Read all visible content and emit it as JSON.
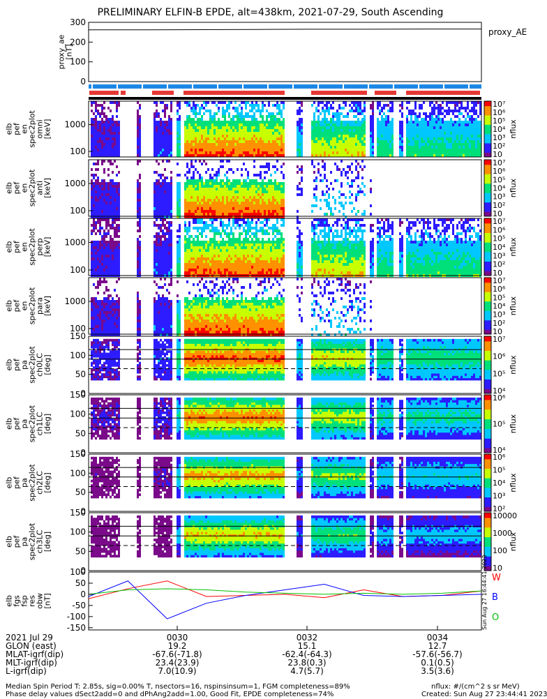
{
  "title": "PRELIMINARY ELFIN-B EPDE, alt=438km, 2021-07-29, South Ascending",
  "colors": {
    "bar_blue": "#1e88e5",
    "bar_red": "#e53935",
    "wave_w": "#ff0000",
    "wave_b": "#0000ff",
    "wave_g": "#00c000",
    "colorbar": [
      "#ffffff",
      "#7a0a8a",
      "#2c1cff",
      "#00c8ff",
      "#00e07a",
      "#c8ff00",
      "#ff9000",
      "#ff0000"
    ]
  },
  "chart_data": [
    {
      "type": "line",
      "name": "proxy_ae",
      "ylabel": "proxy_ae\n[nT]",
      "ylim": [
        0,
        300
      ],
      "yticks": [
        "0",
        "100",
        "200",
        "300"
      ],
      "legend": "proxy_AE",
      "series": [
        {
          "values": [
            262,
            262,
            263,
            264,
            265,
            265,
            266,
            266
          ]
        }
      ]
    },
    {
      "type": "heatmap",
      "ylabel": "elb\npef\nen\nspec2plot\nomni\n[keV]",
      "yscale": "log",
      "yticks": [
        "100",
        "1000"
      ],
      "colorbar": {
        "label": "nflux",
        "ticks": [
          "10",
          "10²",
          "10³",
          "10⁴",
          "10⁵",
          "10⁶",
          "10⁷"
        ]
      }
    },
    {
      "type": "heatmap",
      "ylabel": "elb\npef\nen\nspec2plot\nanti\n[keV]",
      "yscale": "log",
      "yticks": [
        "100",
        "1000"
      ],
      "colorbar": {
        "label": "nflux",
        "ticks": [
          "10",
          "10²",
          "10³",
          "10⁴",
          "10⁵",
          "10⁶",
          "10⁷"
        ]
      }
    },
    {
      "type": "heatmap",
      "ylabel": "elb\npef\nen\nspec2plot\nperp\n[keV]",
      "yscale": "log",
      "yticks": [
        "100",
        "1000"
      ],
      "colorbar": {
        "label": "nflux",
        "ticks": [
          "10",
          "10²",
          "10³",
          "10⁴",
          "10⁵",
          "10⁶",
          "10⁷"
        ]
      }
    },
    {
      "type": "heatmap",
      "ylabel": "elb\npef\nen\nspec2plot\npara\n[keV]",
      "yscale": "log",
      "yticks": [
        "100",
        "1000"
      ],
      "colorbar": {
        "label": "nflux",
        "ticks": [
          "10",
          "10²",
          "10³",
          "10⁴",
          "10⁵",
          "10⁶",
          "10⁷"
        ]
      }
    },
    {
      "type": "heatmap",
      "ylabel": "elb\npef\npa\nspec2plot\nch0LC\n[deg]",
      "ylim": [
        0,
        150
      ],
      "yticks": [
        "0",
        "50",
        "100",
        "150"
      ],
      "colorbar": {
        "label": "nflux",
        "ticks": [
          "10⁴",
          "10⁵",
          "10⁶",
          "10⁷"
        ]
      }
    },
    {
      "type": "heatmap",
      "ylabel": "elb\npef\npa\nspec2plot\nch1LC\n[deg]",
      "ylim": [
        0,
        150
      ],
      "yticks": [
        "0",
        "50",
        "100",
        "150"
      ],
      "colorbar": {
        "label": "nflux",
        "ticks": [
          "10⁴",
          "10⁵",
          "10⁶"
        ]
      }
    },
    {
      "type": "heatmap",
      "ylabel": "elb\npef\npa\nspec2plot\nch2LC\n[deg]",
      "ylim": [
        0,
        150
      ],
      "yticks": [
        "0",
        "50",
        "100",
        "150"
      ],
      "colorbar": {
        "label": "nflux",
        "ticks": [
          "10²",
          "10³",
          "10⁴",
          "10⁵",
          "10⁶"
        ]
      }
    },
    {
      "type": "heatmap",
      "ylabel": "elb\npef\npa\nspec2plot\nch3LC\n[deg]",
      "ylim": [
        0,
        150
      ],
      "yticks": [
        "0",
        "50",
        "100",
        "150"
      ],
      "colorbar": {
        "label": "nflux",
        "ticks": [
          "10",
          "100",
          "1000",
          "10000"
        ]
      }
    },
    {
      "type": "line",
      "ylabel": "elb\nfgs\nfsp\nres\nobw\n[nT]",
      "ylim": [
        -160,
        100
      ],
      "yticks": [
        "-150",
        "-100",
        "-50",
        "0",
        "50",
        "100"
      ],
      "x": [
        0,
        10,
        20,
        30,
        40,
        50,
        60,
        70,
        80,
        90,
        100
      ],
      "series": [
        {
          "name": "W",
          "values": [
            -20,
            25,
            60,
            -10,
            -5,
            0,
            -15,
            20,
            -10,
            -5,
            15
          ]
        },
        {
          "name": "B",
          "values": [
            -10,
            60,
            -110,
            -40,
            -5,
            20,
            45,
            -5,
            -10,
            -5,
            0
          ]
        },
        {
          "name": "O",
          "values": [
            0,
            20,
            25,
            20,
            10,
            5,
            0,
            5,
            0,
            5,
            15
          ]
        }
      ]
    }
  ],
  "xaxis": {
    "ticks": [
      "0030",
      "0032",
      "0034"
    ],
    "rows": [
      {
        "label": "2021 Jul 29",
        "values": [
          "",
          "",
          ""
        ]
      },
      {
        "label": "GLON (east)",
        "values": [
          "19.2",
          "15.1",
          "12.7"
        ]
      },
      {
        "label": "MLAT-igrf(dip)",
        "values": [
          "-67.6(-71.8)",
          "-62.4(-64.3)",
          "-57.6(-56.7)"
        ]
      },
      {
        "label": "MLT-igrf(dip)",
        "values": [
          "23.4(23.9)",
          "23.8(0.3)",
          "0.1(0.5)"
        ]
      },
      {
        "label": "L-igrf(dip)",
        "values": [
          "7.0(10.9)",
          "4.7(5.7)",
          "3.5(3.6)"
        ]
      }
    ]
  },
  "footer": {
    "line1": "Median Spin Period T: 2.85s, sig=0.00% T, nsectors=16, nspinsinsum=1, FGM completeness=89%",
    "line2": "Phase delay values dSect2add=0 and dPhAng2add=1.00, Good Fit, EPDE completeness=74%",
    "units": "nflux: #/(cm^2 s sr MeV)",
    "created": "Created: Sun Aug 27 23:44:41 2023",
    "vertical": "Sun Aug 27 16:44:41 2023"
  }
}
